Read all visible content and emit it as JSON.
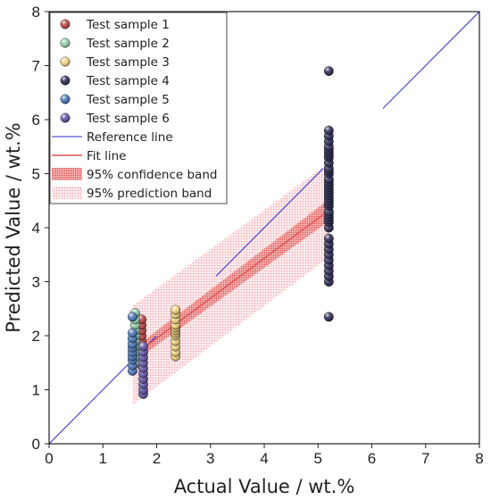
{
  "chart_data": {
    "type": "scatter",
    "xlabel": "Actual Value / wt.%",
    "ylabel": "Predicted Value / wt.%",
    "xlim": [
      0,
      8
    ],
    "ylim": [
      0,
      8
    ],
    "xticks": [
      "0",
      "1",
      "2",
      "3",
      "4",
      "5",
      "6",
      "7",
      "8"
    ],
    "yticks": [
      "0",
      "1",
      "2",
      "3",
      "4",
      "5",
      "6",
      "7",
      "8"
    ],
    "grid": false,
    "legend_position": "top-left",
    "series": [
      {
        "name": "Test sample 1",
        "color": "#b83a3a",
        "x": [
          1.72,
          1.72,
          1.72,
          1.72,
          1.72,
          1.72,
          1.72,
          1.72,
          1.72,
          1.72
        ],
        "y": [
          1.45,
          1.55,
          1.62,
          1.7,
          1.8,
          1.9,
          2.0,
          2.1,
          2.2,
          2.3
        ]
      },
      {
        "name": "Test sample 2",
        "color": "#8ecfaa",
        "x": [
          1.6,
          1.6,
          1.6,
          1.6,
          1.6,
          1.6,
          1.6,
          1.6,
          1.6,
          1.6
        ],
        "y": [
          1.5,
          1.6,
          1.7,
          1.8,
          1.9,
          2.0,
          2.1,
          2.2,
          2.3,
          2.42
        ]
      },
      {
        "name": "Test sample 3",
        "color": "#f2d27a",
        "x": [
          2.35,
          2.35,
          2.35,
          2.35,
          2.35,
          2.35,
          2.35,
          2.35,
          2.35,
          2.35,
          2.35,
          2.35
        ],
        "y": [
          1.62,
          1.7,
          1.8,
          1.9,
          2.0,
          2.05,
          2.1,
          2.15,
          2.2,
          2.3,
          2.4,
          2.48
        ]
      },
      {
        "name": "Test sample 4",
        "color": "#1f1f4a",
        "x": [
          5.2,
          5.2,
          5.2,
          5.2,
          5.2,
          5.2,
          5.2,
          5.2,
          5.2,
          5.2,
          5.2,
          5.2,
          5.2,
          5.2,
          5.2,
          5.2,
          5.2,
          5.2,
          5.2,
          5.2,
          5.2,
          5.2,
          5.2,
          5.2,
          5.2,
          5.2,
          5.2,
          5.2,
          5.2,
          5.2,
          5.2,
          5.2,
          5.2,
          5.2,
          5.2,
          5.2,
          5.2,
          5.2,
          5.2,
          5.2
        ],
        "y": [
          2.35,
          3.0,
          3.1,
          3.2,
          3.3,
          3.4,
          3.5,
          3.6,
          3.7,
          3.8,
          4.0,
          4.1,
          4.15,
          4.2,
          4.25,
          4.3,
          4.4,
          4.45,
          4.5,
          4.55,
          4.6,
          4.65,
          4.7,
          4.75,
          4.8,
          4.85,
          4.9,
          5.0,
          5.05,
          5.1,
          5.2,
          5.3,
          5.35,
          5.4,
          5.45,
          5.5,
          5.6,
          5.7,
          5.8,
          6.9
        ]
      },
      {
        "name": "Test sample 5",
        "color": "#3d6fb5",
        "x": [
          1.55,
          1.55,
          1.55,
          1.55,
          1.55,
          1.55,
          1.55,
          1.55,
          1.55,
          1.55
        ],
        "y": [
          1.35,
          1.45,
          1.55,
          1.62,
          1.7,
          1.78,
          1.85,
          1.95,
          2.05,
          2.35
        ]
      },
      {
        "name": "Test sample 6",
        "color": "#5b4aa0",
        "x": [
          1.75,
          1.75,
          1.75,
          1.75,
          1.75,
          1.75,
          1.75,
          1.75,
          1.75,
          1.75
        ],
        "y": [
          0.92,
          1.0,
          1.1,
          1.2,
          1.3,
          1.4,
          1.5,
          1.6,
          1.7,
          1.8
        ]
      }
    ],
    "reference_line": {
      "name": "Reference line",
      "color": "#2a2ad0",
      "x": [
        0,
        8
      ],
      "y": [
        0,
        8
      ]
    },
    "fit_line": {
      "name": "Fit line",
      "color": "#e05050",
      "x": [
        1.55,
        5.2
      ],
      "y": [
        1.62,
        4.32
      ]
    },
    "confidence_band": {
      "name": "95% confidence band",
      "color": "#e05050",
      "x": [
        1.55,
        5.2
      ],
      "lower": [
        1.5,
        4.12
      ],
      "upper": [
        1.75,
        4.52
      ]
    },
    "prediction_band": {
      "name": "95% prediction  band",
      "color": "#f2a0a8",
      "x": [
        1.55,
        5.2
      ],
      "lower": [
        0.72,
        3.45
      ],
      "upper": [
        2.55,
        5.2
      ]
    },
    "legend_entries": [
      "Test sample 1",
      "Test sample 2",
      "Test sample 3",
      "Test sample 4",
      "Test sample 5",
      "Test sample 6",
      "Reference line",
      "Fit line",
      "95% confidence band",
      "95% prediction  band"
    ]
  }
}
